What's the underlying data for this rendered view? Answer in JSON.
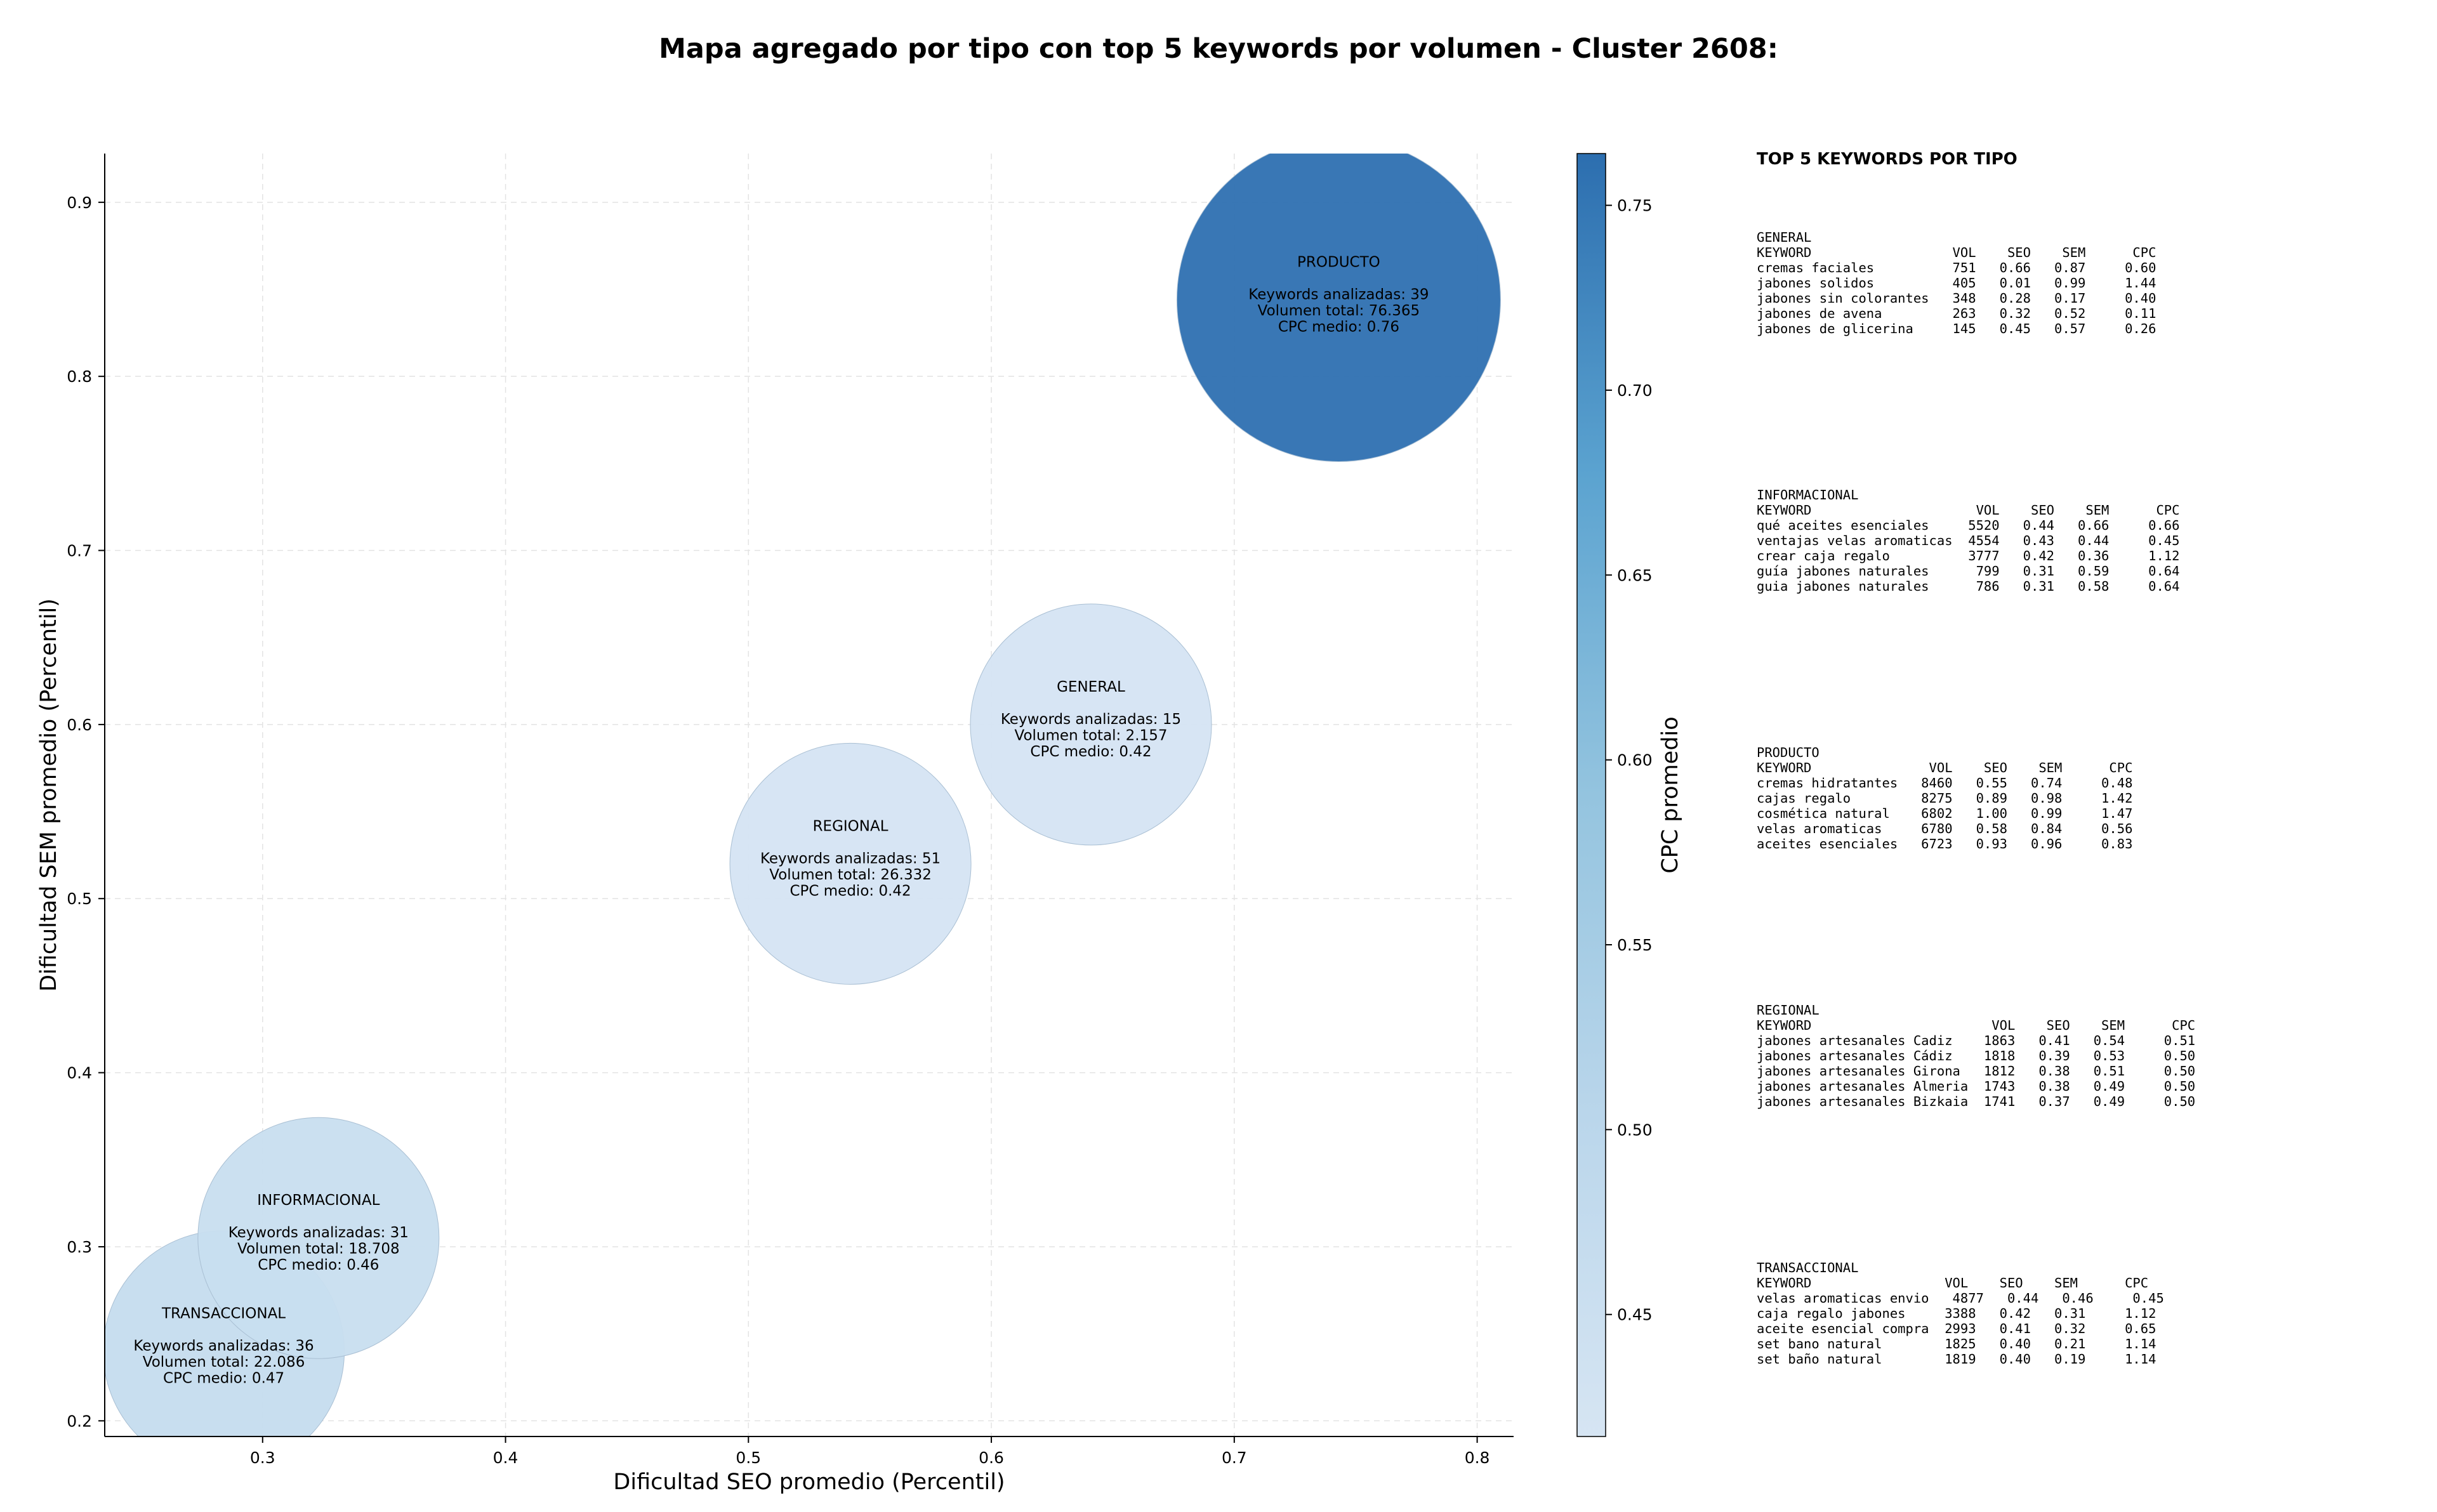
{
  "chart_data": {
    "type": "scatter",
    "title": "Mapa agregado por tipo con top 5 keywords por volumen - Cluster 2608:",
    "xlabel": "Dificultad SEO promedio (Percentil)",
    "ylabel": "Dificultad SEM promedio (Percentil)",
    "colorbar_label": "CPC promedio",
    "xlim": [
      0.235,
      0.815
    ],
    "ylim": [
      0.191,
      0.928
    ],
    "xticks": [
      0.3,
      0.4,
      0.5,
      0.6,
      0.7,
      0.8
    ],
    "xtick_labels": [
      "0.3",
      "0.4",
      "0.5",
      "0.6",
      "0.7",
      "0.8"
    ],
    "yticks": [
      0.2,
      0.3,
      0.4,
      0.5,
      0.6,
      0.7,
      0.8,
      0.9
    ],
    "ytick_labels": [
      "0.2",
      "0.3",
      "0.4",
      "0.5",
      "0.6",
      "0.7",
      "0.8",
      "0.9"
    ],
    "colorbar_range": [
      0.417,
      0.764
    ],
    "colorbar_ticks": [
      0.45,
      0.5,
      0.55,
      0.6,
      0.65,
      0.7,
      0.75
    ],
    "colorbar_tick_labels": [
      "0.45",
      "0.50",
      "0.55",
      "0.60",
      "0.65",
      "0.70",
      "0.75"
    ],
    "grid": true,
    "points": [
      {
        "name": "TRANSACCIONAL",
        "x": 0.284,
        "y": 0.24,
        "cpc": 0.47,
        "volume": 22086,
        "label_lines": [
          "TRANSACCIONAL",
          "",
          "Keywords analizadas: 36",
          "Volumen total: 22.086",
          "CPC medio: 0.47"
        ]
      },
      {
        "name": "INFORMACIONAL",
        "x": 0.323,
        "y": 0.305,
        "cpc": 0.46,
        "volume": 18708,
        "label_lines": [
          "INFORMACIONAL",
          "",
          "Keywords analizadas: 31",
          "Volumen total: 18.708",
          "CPC medio: 0.46"
        ]
      },
      {
        "name": "REGIONAL",
        "x": 0.542,
        "y": 0.52,
        "cpc": 0.42,
        "volume": 26332,
        "label_lines": [
          "REGIONAL",
          "",
          "Keywords analizadas: 51",
          "Volumen total: 26.332",
          "CPC medio: 0.42"
        ]
      },
      {
        "name": "GENERAL",
        "x": 0.641,
        "y": 0.6,
        "cpc": 0.42,
        "volume": 2157,
        "label_lines": [
          "GENERAL",
          "",
          "Keywords analizadas: 15",
          "Volumen total: 2.157",
          "CPC medio: 0.42"
        ]
      },
      {
        "name": "PRODUCTO",
        "x": 0.743,
        "y": 0.844,
        "cpc": 0.76,
        "volume": 76365,
        "label_lines": [
          "PRODUCTO",
          "",
          "Keywords analizadas: 39",
          "Volumen total: 76.365",
          "CPC medio: 0.76"
        ]
      }
    ]
  },
  "panel": {
    "title": "TOP 5 KEYWORDS POR TIPO",
    "blocks": [
      {
        "name": "GENERAL",
        "text": "GENERAL\nKEYWORD                  VOL    SEO    SEM      CPC\ncremas faciales          751   0.66   0.87     0.60\njabones solidos          405   0.01   0.99     1.44\njabones sin colorantes   348   0.28   0.17     0.40\njabones de avena         263   0.32   0.52     0.11\njabones de glicerina     145   0.45   0.57     0.26"
      },
      {
        "name": "INFORMACIONAL",
        "text": "INFORMACIONAL\nKEYWORD                     VOL    SEO    SEM      CPC\nqué aceites esenciales     5520   0.44   0.66     0.66\nventajas velas aromaticas  4554   0.43   0.44     0.45\ncrear caja regalo          3777   0.42   0.36     1.12\nguía jabones naturales      799   0.31   0.59     0.64\nguia jabones naturales      786   0.31   0.58     0.64"
      },
      {
        "name": "PRODUCTO",
        "text": "PRODUCTO\nKEYWORD               VOL    SEO    SEM      CPC\ncremas hidratantes   8460   0.55   0.74     0.48\ncajas regalo         8275   0.89   0.98     1.42\ncosmética natural    6802   1.00   0.99     1.47\nvelas aromaticas     6780   0.58   0.84     0.56\naceites esenciales   6723   0.93   0.96     0.83"
      },
      {
        "name": "REGIONAL",
        "text": "REGIONAL\nKEYWORD                       VOL    SEO    SEM      CPC\njabones artesanales Cadiz    1863   0.41   0.54     0.51\njabones artesanales Cádiz    1818   0.39   0.53     0.50\njabones artesanales Girona   1812   0.38   0.51     0.50\njabones artesanales Almeria  1743   0.38   0.49     0.50\njabones artesanales Bizkaia  1741   0.37   0.49     0.50"
      },
      {
        "name": "TRANSACCIONAL",
        "text": "TRANSACCIONAL\nKEYWORD                 VOL    SEO    SEM      CPC\nvelas aromaticas envio   4877   0.44   0.46     0.45\ncaja regalo jabones     3388   0.42   0.31     1.12\naceite esencial compra  2993   0.41   0.32     0.65\nset bano natural        1825   0.40   0.21     1.14\nset baño natural        1819   0.40   0.19     1.14"
      }
    ]
  }
}
